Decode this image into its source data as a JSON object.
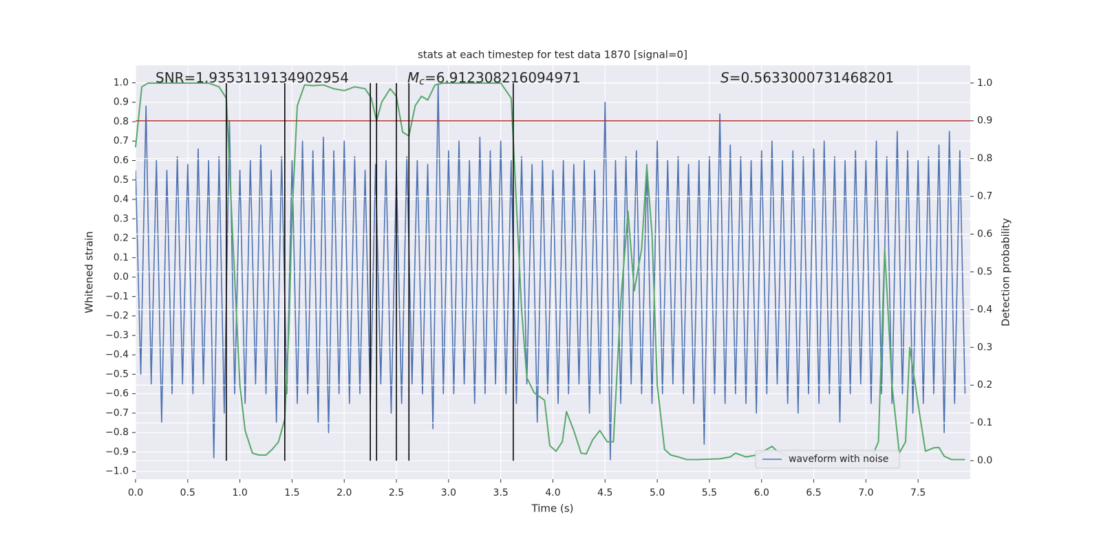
{
  "chart_data": {
    "type": "line",
    "title": "stats at each timestep for test data 1870 [signal=0]",
    "xlabel": "Time (s)",
    "ylabel": "Whitened strain",
    "y2label": "Detection probability",
    "annotations": [
      {
        "text": "SNR=1.9353119134902954"
      },
      {
        "symbol": "M",
        "sub": "c",
        "text": "=6.912308216094971"
      },
      {
        "symbol": "S",
        "text": "=0.5633000731468201"
      }
    ],
    "xlim": [
      0,
      8.0
    ],
    "ylim": [
      -1.04,
      1.09
    ],
    "y2lim": [
      -0.049,
      1.047
    ],
    "xticks": [
      {
        "value": 0,
        "label": "0.0"
      },
      0.5,
      {
        "value": 1,
        "label": "1.0"
      },
      1.5,
      {
        "value": 2,
        "label": "2.0"
      },
      2.5,
      {
        "value": 3,
        "label": "3.0"
      },
      3.5,
      {
        "value": 4,
        "label": "4.0"
      },
      4.5,
      {
        "value": 5,
        "label": "5.0"
      },
      5.5,
      {
        "value": 6,
        "label": "6.0"
      },
      6.5,
      {
        "value": 7,
        "label": "7.0"
      },
      7.5
    ],
    "yticks": [
      {
        "value": 1,
        "label": "1.0"
      },
      0.9,
      0.8,
      0.7,
      0.6,
      0.5,
      0.4,
      0.3,
      0.2,
      0.1,
      {
        "value": 0,
        "label": "0.0"
      },
      {
        "value": -0.1,
        "label": "−0.1"
      },
      {
        "value": -0.2,
        "label": "−0.2"
      },
      {
        "value": -0.3,
        "label": "−0.3"
      },
      {
        "value": -0.4,
        "label": "−0.4"
      },
      {
        "value": -0.5,
        "label": "−0.5"
      },
      {
        "value": -0.6,
        "label": "−0.6"
      },
      {
        "value": -0.7,
        "label": "−0.7"
      },
      {
        "value": -0.8,
        "label": "−0.8"
      },
      {
        "value": -0.9,
        "label": "−0.9"
      },
      {
        "value": -1,
        "label": "−1.0"
      }
    ],
    "y2ticks": [
      {
        "value": 0,
        "label": "0.0"
      },
      0.1,
      0.2,
      0.3,
      0.4,
      0.5,
      0.6,
      0.7,
      0.8,
      0.9,
      {
        "value": 1,
        "label": "1.0"
      }
    ],
    "grid": true,
    "legend": "lower right",
    "threshold": {
      "value": 0.9,
      "axis": "y2",
      "color": "#b2302c"
    },
    "vlines": {
      "x": [
        0.87,
        1.43,
        2.25,
        2.31,
        2.5,
        2.62,
        3.62
      ],
      "axis": "y2",
      "range": [
        0,
        1
      ],
      "color": "#000000"
    },
    "series": [
      {
        "name": "waveform with noise",
        "color": "#4c72b0",
        "x": [
          0,
          0.05,
          0.1,
          0.15,
          0.2,
          0.25,
          0.3,
          0.35,
          0.4,
          0.45,
          0.5,
          0.55,
          0.6,
          0.65,
          0.7,
          0.75,
          0.8,
          0.85,
          0.9,
          0.95,
          1,
          1.05,
          1.1,
          1.15,
          1.2,
          1.25,
          1.3,
          1.35,
          1.4,
          1.45,
          1.5,
          1.55,
          1.6,
          1.65,
          1.7,
          1.75,
          1.8,
          1.85,
          1.9,
          1.95,
          2,
          2.05,
          2.1,
          2.15,
          2.2,
          2.25,
          2.3,
          2.35,
          2.4,
          2.45,
          2.5,
          2.55,
          2.6,
          2.65,
          2.7,
          2.75,
          2.8,
          2.85,
          2.9,
          2.95,
          3,
          3.05,
          3.1,
          3.15,
          3.2,
          3.25,
          3.3,
          3.35,
          3.4,
          3.45,
          3.5,
          3.55,
          3.6,
          3.65,
          3.7,
          3.75,
          3.8,
          3.85,
          3.9,
          3.95,
          4,
          4.05,
          4.1,
          4.15,
          4.2,
          4.25,
          4.3,
          4.35,
          4.4,
          4.45,
          4.5,
          4.55,
          4.6,
          4.65,
          4.7,
          4.75,
          4.8,
          4.85,
          4.9,
          4.95,
          5,
          5.05,
          5.1,
          5.15,
          5.2,
          5.25,
          5.3,
          5.35,
          5.4,
          5.45,
          5.5,
          5.55,
          5.6,
          5.65,
          5.7,
          5.75,
          5.8,
          5.85,
          5.9,
          5.95,
          6,
          6.05,
          6.1,
          6.15,
          6.2,
          6.25,
          6.3,
          6.35,
          6.4,
          6.45,
          6.5,
          6.55,
          6.6,
          6.65,
          6.7,
          6.75,
          6.8,
          6.85,
          6.9,
          6.95,
          7,
          7.05,
          7.1,
          7.15,
          7.2,
          7.25,
          7.3,
          7.35,
          7.4,
          7.45,
          7.5,
          7.55,
          7.6,
          7.65,
          7.7,
          7.75,
          7.8,
          7.85,
          7.9,
          7.95
        ],
        "values": [
          0.55,
          -0.5,
          0.88,
          -0.55,
          0.6,
          -0.75,
          0.55,
          -0.6,
          0.62,
          -0.55,
          0.58,
          -0.6,
          0.66,
          -0.55,
          0.6,
          -0.93,
          0.62,
          -0.7,
          0.8,
          -0.6,
          0.55,
          -0.65,
          0.6,
          -0.55,
          0.68,
          -0.6,
          0.55,
          -0.75,
          0.62,
          -0.6,
          0.6,
          -0.65,
          0.7,
          -0.6,
          0.65,
          -0.75,
          0.72,
          -0.8,
          0.65,
          -0.6,
          0.7,
          -0.65,
          0.62,
          -0.6,
          0.55,
          -0.65,
          0.58,
          -0.55,
          0.6,
          -0.7,
          0.55,
          -0.65,
          0.62,
          -0.55,
          0.6,
          -0.6,
          0.58,
          -0.78,
          1.0,
          -0.6,
          0.65,
          -0.6,
          0.7,
          -0.55,
          0.6,
          -0.65,
          0.72,
          -0.6,
          0.65,
          -0.55,
          0.7,
          -0.6,
          0.6,
          -0.65,
          0.62,
          -0.55,
          0.58,
          -0.75,
          0.6,
          -0.6,
          0.55,
          -0.65,
          0.6,
          -0.6,
          0.58,
          -0.55,
          0.6,
          -0.7,
          0.55,
          -0.6,
          0.9,
          -0.94,
          0.6,
          -0.65,
          0.62,
          -0.55,
          0.65,
          -0.6,
          0.58,
          -0.65,
          0.7,
          -0.6,
          0.6,
          -0.55,
          0.62,
          -0.6,
          0.58,
          -0.65,
          0.6,
          -0.86,
          0.62,
          -0.6,
          0.84,
          -0.65,
          0.68,
          -0.6,
          0.62,
          -0.65,
          0.6,
          -0.7,
          0.65,
          -0.6,
          0.7,
          -0.55,
          0.6,
          -0.65,
          0.65,
          -0.7,
          0.62,
          -0.6,
          0.66,
          -0.65,
          0.7,
          -0.6,
          0.62,
          -0.75,
          0.6,
          -0.6,
          0.65,
          -0.55,
          0.6,
          -0.65,
          0.7,
          -0.6,
          0.62,
          -0.65,
          0.75,
          -0.6,
          0.65,
          -0.7,
          0.6,
          -0.65,
          0.62,
          -0.6,
          0.68,
          -0.8,
          0.75,
          -0.65,
          0.65,
          -0.6
        ]
      },
      {
        "color": "#55a868",
        "axis": "y2",
        "x": [
          0,
          0.06,
          0.12,
          0.5,
          0.7,
          0.8,
          0.87,
          0.93,
          1,
          1.05,
          1.12,
          1.18,
          1.25,
          1.31,
          1.37,
          1.43,
          1.47,
          1.5,
          1.55,
          1.62,
          1.7,
          1.8,
          1.9,
          2,
          2.1,
          2.2,
          2.26,
          2.31,
          2.36,
          2.44,
          2.5,
          2.56,
          2.62,
          2.68,
          2.74,
          2.8,
          2.87,
          2.95,
          3.5,
          3.6,
          3.7,
          3.75,
          3.82,
          3.92,
          3.97,
          4.03,
          4.09,
          4.13,
          4.2,
          4.27,
          4.32,
          4.38,
          4.45,
          4.52,
          4.58,
          4.65,
          4.72,
          4.78,
          4.85,
          4.9,
          4.95,
          5,
          5.07,
          5.13,
          5.2,
          5.28,
          5.4,
          5.6,
          5.7,
          5.75,
          5.85,
          5.95,
          6.05,
          6.1,
          6.15,
          6.25,
          6.4,
          6.5,
          6.6,
          6.8,
          6.95,
          7.05,
          7.12,
          7.18,
          7.25,
          7.32,
          7.38,
          7.42,
          7.5,
          7.57,
          7.65,
          7.7,
          7.75,
          7.82,
          7.95
        ],
        "values": [
          0.83,
          0.99,
          1,
          1,
          1,
          0.99,
          0.96,
          0.6,
          0.2,
          0.08,
          0.02,
          0.015,
          0.015,
          0.03,
          0.05,
          0.11,
          0.35,
          0.65,
          0.94,
          0.995,
          0.993,
          0.995,
          0.985,
          0.98,
          0.99,
          0.985,
          0.96,
          0.9,
          0.95,
          0.985,
          0.965,
          0.87,
          0.86,
          0.94,
          0.965,
          0.955,
          0.995,
          1,
          1,
          0.96,
          0.4,
          0.22,
          0.18,
          0.16,
          0.04,
          0.025,
          0.05,
          0.13,
          0.08,
          0.02,
          0.018,
          0.055,
          0.08,
          0.05,
          0.05,
          0.42,
          0.66,
          0.45,
          0.56,
          0.78,
          0.6,
          0.2,
          0.03,
          0.015,
          0.01,
          0.003,
          0.003,
          0.005,
          0.01,
          0.02,
          0.01,
          0.015,
          0.03,
          0.038,
          0.025,
          0.012,
          0.008,
          0.012,
          0.006,
          0.008,
          0.016,
          0.005,
          0.05,
          0.56,
          0.2,
          0.02,
          0.05,
          0.3,
          0.15,
          0.025,
          0.034,
          0.035,
          0.012,
          0.003,
          0.003
        ]
      }
    ]
  }
}
